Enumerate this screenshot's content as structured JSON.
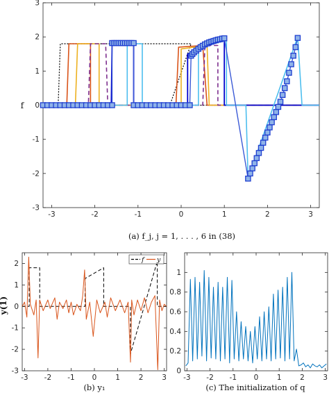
{
  "chart_data": [
    {
      "panel": "a",
      "type": "line",
      "caption": "(a) f_j, j = 1, . . . , 6 in (38)",
      "ylabel": "f",
      "xlim": [
        -3.2,
        3.2
      ],
      "ylim": [
        -3,
        3
      ],
      "xticks": [
        -3,
        -2,
        -1,
        0,
        1,
        2,
        3
      ],
      "yticks": [
        -3,
        -2,
        -1,
        0,
        1,
        2,
        3
      ],
      "grid": false,
      "series": [
        {
          "color": "#000000",
          "dash": "2,2",
          "width": 1.2,
          "x": [
            -3.2,
            -2.85,
            -2.8,
            0.23,
            -0.26,
            -0.2,
            -0.2,
            0.25,
            0.25,
            3.2
          ],
          "y": [
            0,
            0,
            1.8,
            1.8,
            0,
            0,
            0,
            0,
            0,
            0
          ]
        },
        {
          "color": "#d95319",
          "dash": "",
          "width": 1.6,
          "x": [
            -3.2,
            -2.65,
            -2.6,
            -2.1,
            -2.1,
            -0.12,
            -0.06,
            0.5,
            0.6,
            1.0,
            1.0,
            3.2
          ],
          "y": [
            0,
            0,
            1.8,
            1.8,
            0,
            0,
            1.7,
            1.75,
            0,
            0,
            0,
            0
          ]
        },
        {
          "color": "#edb120",
          "dash": "",
          "width": 1.6,
          "x": [
            -3.2,
            -2.45,
            -2.4,
            -1.9,
            -1.9,
            -0.45,
            -0.42,
            0.0,
            0.0,
            0.6,
            0.65,
            3.2
          ],
          "y": [
            0,
            0,
            1.8,
            1.8,
            0,
            0,
            0,
            0,
            1.65,
            1.75,
            0,
            0
          ]
        },
        {
          "color": "#7e2f8e",
          "dash": "6,4",
          "width": 1.6,
          "x": [
            -3.2,
            -2.15,
            -2.1,
            -1.75,
            -1.7,
            0.5,
            0.55,
            0.85,
            0.85,
            3.2
          ],
          "y": [
            0,
            0,
            1.8,
            1.8,
            0,
            0,
            1.75,
            1.75,
            0,
            0
          ]
        },
        {
          "color": "#0000cd",
          "dash": "",
          "width": 1.8,
          "x": [
            -3.2,
            -1.62,
            -1.6,
            -1.1,
            -1.1,
            0.15,
            0.15,
            1.0,
            1.0,
            3.2
          ],
          "y": [
            0,
            0,
            1.82,
            1.82,
            0,
            0,
            1.5,
            1.95,
            0,
            0
          ]
        },
        {
          "color": "#4dbeee",
          "dash": "",
          "width": 1.6,
          "x": [
            -3.2,
            -1.25,
            -1.25,
            -0.9,
            -0.9,
            0.4,
            0.4,
            1.05,
            1.05,
            1.5,
            1.55,
            2.7,
            2.8,
            3.2
          ],
          "y": [
            0,
            0,
            1.8,
            1.8,
            0,
            0,
            1.7,
            1.9,
            0,
            0,
            -2.15,
            2.0,
            0,
            0
          ]
        },
        {
          "color": "#3b5ad6",
          "dash": "",
          "width": 1.4,
          "marker": "square",
          "x": [
            -3.2,
            -3.1,
            -3.0,
            -2.9,
            -2.8,
            -2.7,
            -2.6,
            -2.5,
            -2.4,
            -2.3,
            -2.2,
            -2.1,
            -2.0,
            -1.9,
            -1.8,
            -1.7,
            -1.6,
            -1.6,
            -1.55,
            -1.5,
            -1.45,
            -1.4,
            -1.35,
            -1.3,
            -1.25,
            -1.2,
            -1.15,
            -1.1,
            -1.1,
            -1.0,
            -0.9,
            -0.8,
            -0.7,
            -0.6,
            -0.5,
            -0.4,
            -0.3,
            -0.2,
            -0.1,
            0.0,
            0.1,
            0.2,
            0.23,
            0.26,
            0.3,
            0.35,
            0.4,
            0.45,
            0.5,
            0.55,
            0.6,
            0.65,
            0.7,
            0.75,
            0.8,
            0.85,
            0.9,
            0.95,
            1.0,
            1.55,
            1.6,
            1.65,
            1.7,
            1.75,
            1.8,
            1.85,
            1.9,
            1.95,
            2.0,
            2.05,
            2.1,
            2.15,
            2.2,
            2.25,
            2.3,
            2.35,
            2.4,
            2.45,
            2.5,
            2.55,
            2.6,
            2.65,
            2.7
          ],
          "y": [
            0,
            0,
            0,
            0,
            0,
            0,
            0,
            0,
            0,
            0,
            0,
            0,
            0,
            0,
            0,
            0,
            0,
            1.82,
            1.82,
            1.82,
            1.82,
            1.82,
            1.82,
            1.82,
            1.82,
            1.82,
            1.82,
            1.82,
            0,
            0,
            0,
            0,
            0,
            0,
            0,
            0,
            0,
            0,
            0,
            0,
            0,
            0,
            1.45,
            1.5,
            1.55,
            1.6,
            1.65,
            1.7,
            1.74,
            1.78,
            1.81,
            1.84,
            1.86,
            1.88,
            1.9,
            1.92,
            1.93,
            1.95,
            1.96,
            -2.15,
            -2.0,
            -1.85,
            -1.7,
            -1.55,
            -1.4,
            -1.25,
            -1.1,
            -0.95,
            -0.8,
            -0.65,
            -0.5,
            -0.35,
            -0.2,
            -0.05,
            0.1,
            0.3,
            0.5,
            0.7,
            0.95,
            1.2,
            1.45,
            1.7,
            1.97
          ]
        }
      ]
    },
    {
      "panel": "b",
      "type": "line",
      "caption": "(b) y₁",
      "ylabel": "y(1)",
      "xlim": [
        -3.1,
        3.1
      ],
      "ylim": [
        -3,
        2.5
      ],
      "xticks": [
        -3,
        -2,
        -1,
        0,
        1,
        2,
        3
      ],
      "yticks": [
        -3,
        -2,
        -1,
        0,
        1,
        2
      ],
      "legend": {
        "position": "top-right",
        "entries": [
          "f",
          "y"
        ]
      },
      "series": [
        {
          "name": "f",
          "color": "#000000",
          "dash": "5,3",
          "x": [
            -3.1,
            -2.8,
            -2.8,
            -2.35,
            -2.35,
            -0.4,
            -0.4,
            0.4,
            0.4,
            1.55,
            1.55,
            2.7,
            2.7,
            3.1
          ],
          "y": [
            0,
            0,
            1.8,
            1.8,
            0,
            0,
            1.3,
            1.8,
            0,
            0,
            -2.2,
            2.1,
            0,
            0
          ]
        },
        {
          "name": "y",
          "color": "#d95319",
          "dash": "",
          "x": [
            -3.1,
            -3.0,
            -2.9,
            -2.82,
            -2.75,
            -2.6,
            -2.5,
            -2.42,
            -2.35,
            -2.2,
            -2.0,
            -1.9,
            -1.7,
            -1.6,
            -1.5,
            -1.35,
            -1.2,
            -1.1,
            -1.0,
            -0.9,
            -0.75,
            -0.6,
            -0.5,
            -0.42,
            -0.35,
            -0.2,
            -0.05,
            0.1,
            0.25,
            0.45,
            0.55,
            0.7,
            0.9,
            1.1,
            1.3,
            1.45,
            1.55,
            1.6,
            1.7,
            1.85,
            2.0,
            2.15,
            2.3,
            2.45,
            2.6,
            2.72,
            2.8,
            2.9,
            3.0,
            3.1
          ],
          "y": [
            0,
            0.2,
            -0.5,
            2.3,
            0.1,
            -0.4,
            0.3,
            -2.4,
            0.3,
            -0.2,
            0.3,
            -0.1,
            0.4,
            -0.6,
            0.2,
            -0.1,
            0.3,
            -0.3,
            0.2,
            -0.4,
            0.1,
            -0.2,
            0.5,
            1.7,
            -0.6,
            0.2,
            -1.4,
            0.3,
            -0.3,
            0.2,
            -0.5,
            0.4,
            -0.2,
            0.3,
            -0.3,
            0.2,
            -2.6,
            0.3,
            -0.4,
            0.3,
            -0.2,
            0.4,
            -0.3,
            0.2,
            0.5,
            -2.95,
            0.3,
            -0.2,
            0.1,
            0
          ]
        }
      ]
    },
    {
      "panel": "c",
      "type": "line",
      "caption": "(c) The initialization of q",
      "xlim": [
        -3.1,
        3.1
      ],
      "ylim": [
        0,
        1.2
      ],
      "xticks": [
        -3,
        -2,
        -1,
        0,
        1,
        2,
        3
      ],
      "yticks": [
        0,
        0.2,
        0.4,
        0.6,
        0.8,
        1
      ],
      "series": [
        {
          "color": "#0072bd",
          "dash": "",
          "x": [
            -3.05,
            -2.95,
            -2.85,
            -2.75,
            -2.65,
            -2.55,
            -2.45,
            -2.35,
            -2.25,
            -2.15,
            -2.05,
            -1.95,
            -1.85,
            -1.75,
            -1.65,
            -1.55,
            -1.45,
            -1.35,
            -1.25,
            -1.15,
            -1.05,
            -0.95,
            -0.85,
            -0.75,
            -0.65,
            -0.55,
            -0.45,
            -0.35,
            -0.25,
            -0.15,
            -0.05,
            0.05,
            0.15,
            0.25,
            0.35,
            0.45,
            0.55,
            0.65,
            0.75,
            0.85,
            0.95,
            1.05,
            1.15,
            1.25,
            1.35,
            1.45,
            1.55,
            1.65,
            1.75,
            1.85,
            1.95,
            2.05,
            2.15,
            2.25,
            2.35,
            2.45,
            2.55,
            2.65,
            2.75,
            2.85,
            2.95,
            3.05
          ],
          "y": [
            0.05,
            0.08,
            0.93,
            0.1,
            0.95,
            0.12,
            0.9,
            0.15,
            1.02,
            0.1,
            0.95,
            0.13,
            0.85,
            0.12,
            0.9,
            0.1,
            0.85,
            0.12,
            0.95,
            0.08,
            0.92,
            0.12,
            0.6,
            0.1,
            0.5,
            0.12,
            0.45,
            0.1,
            0.4,
            0.08,
            0.45,
            0.12,
            0.55,
            0.1,
            0.6,
            0.12,
            0.65,
            0.1,
            0.78,
            0.12,
            0.82,
            0.13,
            0.85,
            0.1,
            0.95,
            0.12,
            1.0,
            0.1,
            0.22,
            0.05,
            0.06,
            0.08,
            0.04,
            0.06,
            0.03,
            0.07,
            0.05,
            0.04,
            0.06,
            0.03,
            0.05,
            0.07
          ]
        }
      ]
    }
  ]
}
